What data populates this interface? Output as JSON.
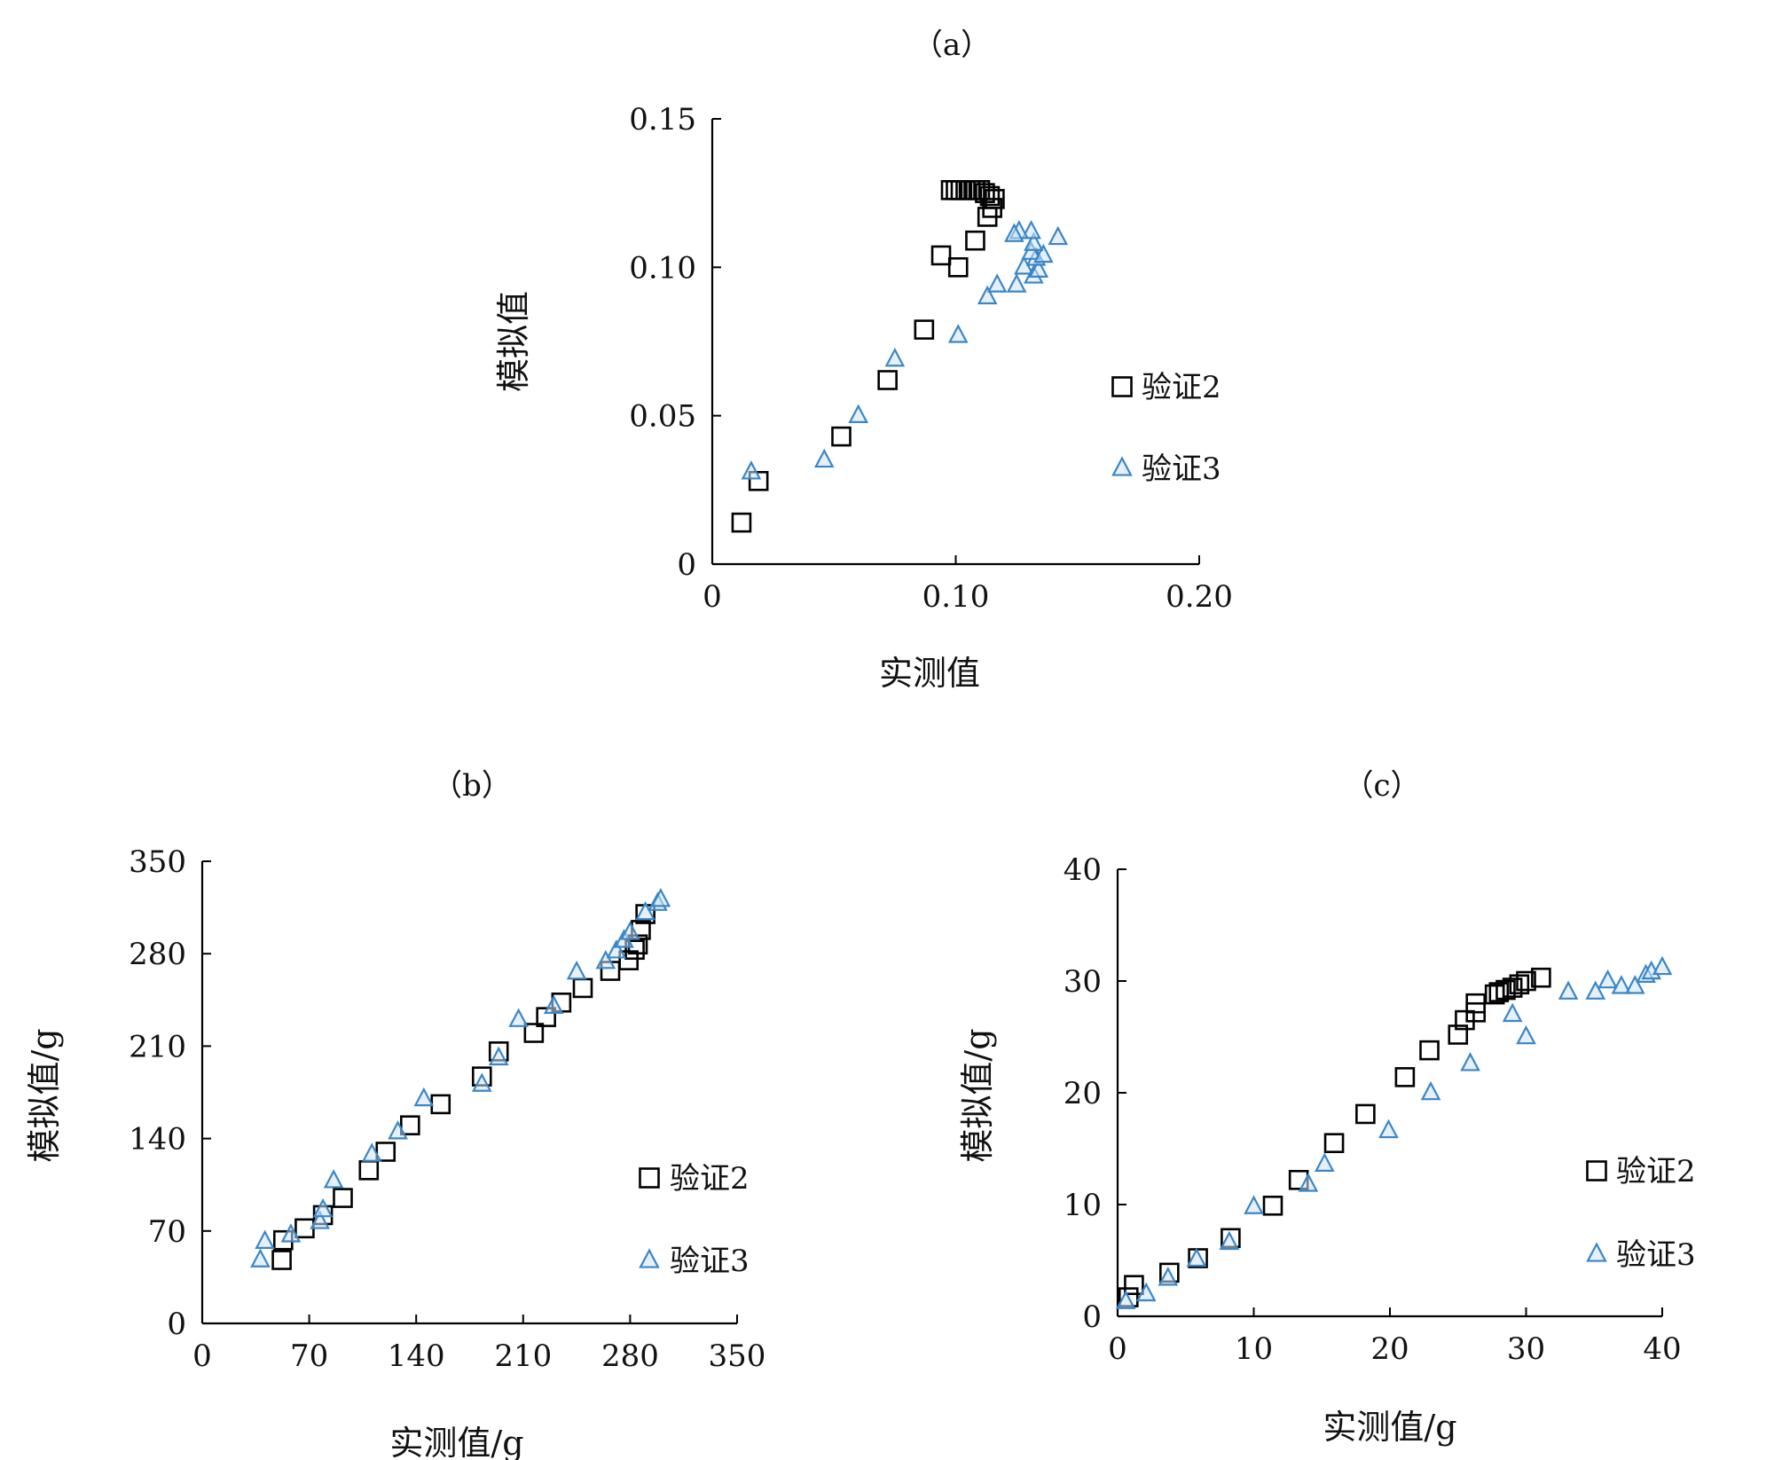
{
  "colors": {
    "axis": "#000000",
    "series2": "#000000",
    "series3": "#3b86c6"
  },
  "chart_data": [
    {
      "type": "scatter",
      "panel_label": "（a）",
      "xlabel": "实测值",
      "ylabel": "模拟值",
      "xlim": [
        0,
        0.2
      ],
      "ylim": [
        0,
        0.15
      ],
      "xticks": [
        0,
        0.1,
        0.2
      ],
      "xtick_labels": [
        "0",
        "0.10",
        "0.20"
      ],
      "yticks": [
        0,
        0.05,
        0.1,
        0.15
      ],
      "ytick_labels": [
        "0",
        "0.05",
        "0.10",
        "0.15"
      ],
      "grid": false,
      "legend_placement": "right",
      "series": [
        {
          "name": "验证2",
          "marker": "square",
          "points": [
            [
              0.012,
              0.014
            ],
            [
              0.019,
              0.028
            ],
            [
              0.053,
              0.043
            ],
            [
              0.072,
              0.062
            ],
            [
              0.087,
              0.079
            ],
            [
              0.094,
              0.104
            ],
            [
              0.101,
              0.1
            ],
            [
              0.108,
              0.109
            ],
            [
              0.113,
              0.117
            ],
            [
              0.115,
              0.12
            ],
            [
              0.116,
              0.123
            ],
            [
              0.114,
              0.124
            ],
            [
              0.112,
              0.125
            ],
            [
              0.11,
              0.126
            ],
            [
              0.108,
              0.126
            ],
            [
              0.106,
              0.126
            ],
            [
              0.104,
              0.126
            ],
            [
              0.102,
              0.126
            ],
            [
              0.1,
              0.126
            ],
            [
              0.098,
              0.126
            ]
          ]
        },
        {
          "name": "验证3",
          "marker": "triangle",
          "points": [
            [
              0.016,
              0.031
            ],
            [
              0.046,
              0.035
            ],
            [
              0.06,
              0.05
            ],
            [
              0.075,
              0.069
            ],
            [
              0.101,
              0.077
            ],
            [
              0.113,
              0.09
            ],
            [
              0.117,
              0.094
            ],
            [
              0.125,
              0.094
            ],
            [
              0.128,
              0.1
            ],
            [
              0.132,
              0.097
            ],
            [
              0.134,
              0.099
            ],
            [
              0.133,
              0.103
            ],
            [
              0.131,
              0.105
            ],
            [
              0.136,
              0.104
            ],
            [
              0.132,
              0.108
            ],
            [
              0.131,
              0.112
            ],
            [
              0.126,
              0.112
            ],
            [
              0.124,
              0.111
            ],
            [
              0.142,
              0.11
            ]
          ]
        }
      ]
    },
    {
      "type": "scatter",
      "panel_label": "（b）",
      "xlabel": "实测值/g",
      "ylabel": "模拟值/g",
      "xlim": [
        0,
        350
      ],
      "ylim": [
        0,
        350
      ],
      "xticks": [
        0,
        70,
        140,
        210,
        280,
        350
      ],
      "xtick_labels": [
        "0",
        "70",
        "140",
        "210",
        "280",
        "350"
      ],
      "yticks": [
        0,
        70,
        140,
        210,
        280,
        350
      ],
      "ytick_labels": [
        "0",
        "70",
        "140",
        "210",
        "280",
        "350"
      ],
      "grid": false,
      "legend_placement": "right",
      "series": [
        {
          "name": "验证2",
          "marker": "square",
          "points": [
            [
              52,
              48
            ],
            [
              53,
              63
            ],
            [
              67,
              72
            ],
            [
              79,
              82
            ],
            [
              92,
              95
            ],
            [
              109,
              116
            ],
            [
              120,
              130
            ],
            [
              136,
              150
            ],
            [
              156,
              166
            ],
            [
              183,
              187
            ],
            [
              194,
              206
            ],
            [
              217,
              220
            ],
            [
              225,
              232
            ],
            [
              235,
              243
            ],
            [
              249,
              254
            ],
            [
              267,
              267
            ],
            [
              279,
              275
            ],
            [
              283,
              283
            ],
            [
              285,
              287
            ],
            [
              287,
              298
            ],
            [
              290,
              310
            ]
          ]
        },
        {
          "name": "验证3",
          "marker": "triangle",
          "points": [
            [
              38,
              48
            ],
            [
              41,
              62
            ],
            [
              58,
              67
            ],
            [
              77,
              77
            ],
            [
              79,
              86
            ],
            [
              86,
              108
            ],
            [
              111,
              128
            ],
            [
              128,
              145
            ],
            [
              145,
              170
            ],
            [
              183,
              181
            ],
            [
              194,
              201
            ],
            [
              207,
              230
            ],
            [
              230,
              240
            ],
            [
              245,
              266
            ],
            [
              264,
              274
            ],
            [
              271,
              282
            ],
            [
              276,
              290
            ],
            [
              280,
              296
            ],
            [
              290,
              311
            ],
            [
              298,
              318
            ],
            [
              300,
              321
            ]
          ]
        }
      ]
    },
    {
      "type": "scatter",
      "panel_label": "（c）",
      "xlabel": "实测值/g",
      "ylabel": "模拟值/g",
      "xlim": [
        0,
        40
      ],
      "ylim": [
        0,
        40
      ],
      "xticks": [
        0,
        10,
        20,
        30,
        40
      ],
      "xtick_labels": [
        "0",
        "10",
        "20",
        "30",
        "40"
      ],
      "yticks": [
        0,
        10,
        20,
        30,
        40
      ],
      "ytick_labels": [
        "0",
        "10",
        "20",
        "30",
        "40"
      ],
      "grid": false,
      "legend_placement": "right",
      "series": [
        {
          "name": "验证2",
          "marker": "square",
          "points": [
            [
              0.8,
              1.7
            ],
            [
              1.2,
              2.8
            ],
            [
              3.8,
              3.9
            ],
            [
              5.9,
              5.2
            ],
            [
              8.3,
              7.0
            ],
            [
              11.4,
              9.9
            ],
            [
              13.3,
              12.2
            ],
            [
              15.9,
              15.5
            ],
            [
              18.2,
              18.1
            ],
            [
              21.1,
              21.4
            ],
            [
              22.9,
              23.8
            ],
            [
              25.0,
              25.2
            ],
            [
              25.5,
              26.5
            ],
            [
              26.3,
              27.2
            ],
            [
              26.3,
              28.0
            ],
            [
              27.7,
              28.8
            ],
            [
              28.0,
              29.0
            ],
            [
              28.5,
              29.2
            ],
            [
              29.0,
              29.4
            ],
            [
              29.5,
              29.7
            ],
            [
              30.0,
              30.0
            ],
            [
              31.1,
              30.3
            ]
          ]
        },
        {
          "name": "验证3",
          "marker": "triangle",
          "points": [
            [
              0.6,
              1.3
            ],
            [
              2.1,
              2.0
            ],
            [
              3.7,
              3.4
            ],
            [
              5.8,
              5.1
            ],
            [
              8.2,
              6.6
            ],
            [
              10.0,
              9.8
            ],
            [
              14.0,
              11.8
            ],
            [
              15.2,
              13.6
            ],
            [
              19.9,
              16.6
            ],
            [
              23.0,
              20.0
            ],
            [
              25.9,
              22.6
            ],
            [
              29.0,
              27.0
            ],
            [
              30.0,
              25.0
            ],
            [
              33.1,
              29.0
            ],
            [
              35.1,
              29.0
            ],
            [
              36.0,
              30.0
            ],
            [
              37.0,
              29.5
            ],
            [
              38.0,
              29.5
            ],
            [
              38.8,
              30.5
            ],
            [
              39.2,
              30.8
            ],
            [
              40.0,
              31.2
            ]
          ]
        }
      ]
    }
  ]
}
